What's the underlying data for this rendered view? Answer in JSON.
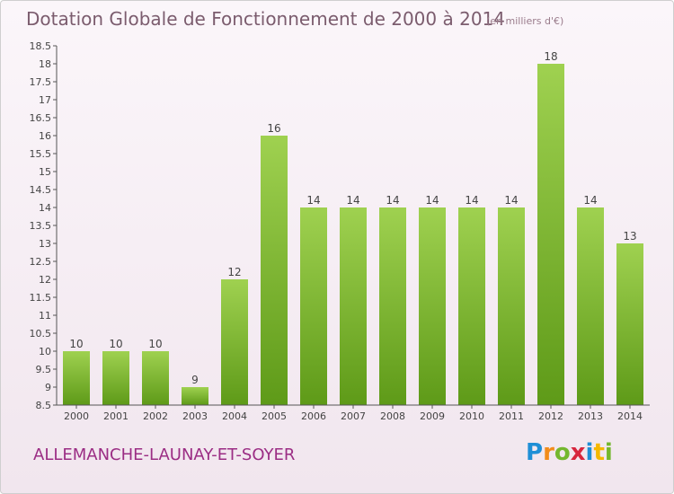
{
  "header": {
    "title": "Dotation Globale de Fonctionnement de 2000 à 2014",
    "unit_note": "(en milliers d'€)"
  },
  "footer": {
    "commune": "ALLEMANCHE-LAUNAY-ET-SOYER",
    "logo": [
      "P",
      "r",
      "o",
      "x",
      "i",
      "t",
      "i"
    ]
  },
  "colors": {
    "bar_top": "#9fd150",
    "bar_bottom": "#5e9a18",
    "title": "#7b5c6e",
    "commune": "#9b2d84"
  },
  "chart_data": {
    "type": "bar",
    "categories": [
      "2000",
      "2001",
      "2002",
      "2003",
      "2004",
      "2005",
      "2006",
      "2007",
      "2008",
      "2009",
      "2010",
      "2011",
      "2012",
      "2013",
      "2014"
    ],
    "values": [
      10,
      10,
      10,
      9,
      12,
      16,
      14,
      14,
      14,
      14,
      14,
      14,
      18,
      14,
      13
    ],
    "data_labels": [
      "10",
      "10",
      "10",
      "9",
      "12",
      "16",
      "14",
      "14",
      "14",
      "14",
      "14",
      "14",
      "18",
      "14",
      "13"
    ],
    "ylim": [
      8.5,
      18.5
    ],
    "yticks": [
      "8.5",
      "9",
      "9.5",
      "10",
      "10.5",
      "11",
      "11.5",
      "12",
      "12.5",
      "13",
      "13.5",
      "14",
      "14.5",
      "15",
      "15.5",
      "16",
      "16.5",
      "17",
      "17.5",
      "18",
      "18.5"
    ],
    "grid": false,
    "legend": "none"
  }
}
